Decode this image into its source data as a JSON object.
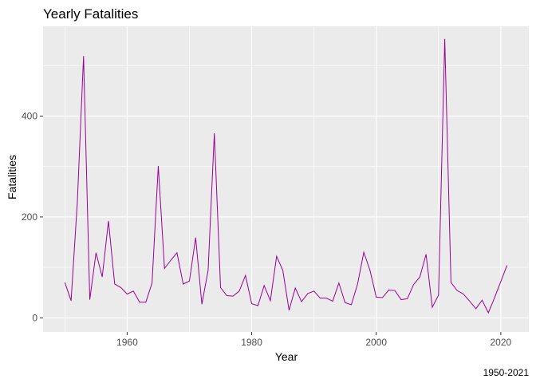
{
  "chart_data": {
    "type": "line",
    "title": "Yearly Fatalities",
    "xlabel": "Year",
    "ylabel": "Fatalities",
    "caption": "1950-2021",
    "line_color": "#990099",
    "panel_background": "#ebebeb",
    "grid": true,
    "xlim": [
      1946.5,
      2024.5
    ],
    "ylim": [
      -28,
      578
    ],
    "x_ticks": [
      1960,
      1980,
      2000,
      2020
    ],
    "x_tick_labels": [
      "1960",
      "1980",
      "2000",
      "2020"
    ],
    "y_ticks": [
      0,
      200,
      400
    ],
    "y_tick_labels": [
      "0",
      "200",
      "400"
    ],
    "x": [
      1950,
      1951,
      1952,
      1953,
      1954,
      1955,
      1956,
      1957,
      1958,
      1959,
      1960,
      1961,
      1962,
      1963,
      1964,
      1965,
      1966,
      1967,
      1968,
      1969,
      1970,
      1971,
      1972,
      1973,
      1974,
      1975,
      1976,
      1977,
      1978,
      1979,
      1980,
      1981,
      1982,
      1983,
      1984,
      1985,
      1986,
      1987,
      1988,
      1989,
      1990,
      1991,
      1992,
      1993,
      1994,
      1995,
      1996,
      1997,
      1998,
      1999,
      2000,
      2001,
      2002,
      2003,
      2004,
      2005,
      2006,
      2007,
      2008,
      2009,
      2010,
      2011,
      2012,
      2013,
      2014,
      2015,
      2016,
      2017,
      2018,
      2019,
      2020,
      2021
    ],
    "y": [
      70,
      34,
      229,
      519,
      36,
      129,
      81,
      192,
      67,
      60,
      47,
      53,
      31,
      31,
      69,
      301,
      98,
      114,
      129,
      67,
      73,
      159,
      27,
      94,
      366,
      60,
      44,
      43,
      53,
      84,
      28,
      24,
      64,
      34,
      122,
      94,
      15,
      59,
      32,
      48,
      53,
      39,
      39,
      33,
      69,
      30,
      26,
      67,
      130,
      94,
      41,
      40,
      55,
      54,
      36,
      38,
      66,
      81,
      126,
      21,
      45,
      553,
      70,
      54,
      47,
      33,
      18,
      35,
      10,
      40,
      72,
      104
    ]
  }
}
